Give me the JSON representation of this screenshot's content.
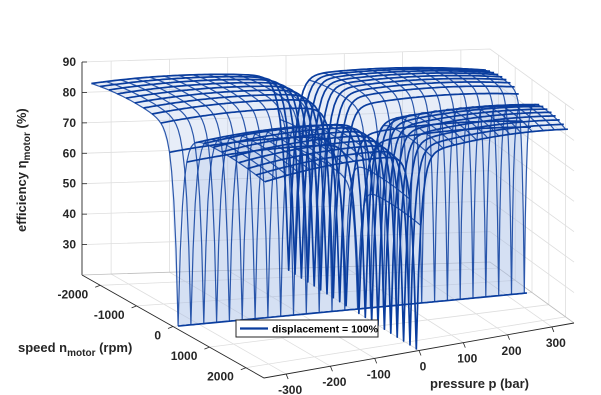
{
  "chart_data": {
    "type": "surface3d",
    "title": "",
    "xlabel": "pressure p (bar)",
    "ylabel": "speed n",
    "ylabel_sub": "motor",
    "ylabel_unit": " (rpm)",
    "zlabel": "efficiency η",
    "zlabel_sub": "motor",
    "zlabel_unit": " (%)",
    "x_ticks": [
      -300,
      -200,
      -100,
      0,
      100,
      200,
      300
    ],
    "y_ticks": [
      -2000,
      -1000,
      0,
      1000,
      2000
    ],
    "z_ticks": [
      30,
      40,
      50,
      60,
      70,
      80,
      90
    ],
    "xlim": [
      -350,
      350
    ],
    "ylim": [
      -2500,
      2500
    ],
    "zlim": [
      20,
      90
    ],
    "grid": true,
    "legend": {
      "position": "bottom-center",
      "entries": [
        "displacement = 100%"
      ]
    },
    "series": [
      {
        "name": "displacement = 100%",
        "color": "#0a3d9e",
        "fill": "#a9c0e6",
        "regions": [
          {
            "pressure_sign": "+",
            "speed_sign": "-",
            "peak_efficiency": 87
          },
          {
            "pressure_sign": "-",
            "speed_sign": "-",
            "peak_efficiency": 87
          },
          {
            "pressure_sign": "-",
            "speed_sign": "+",
            "peak_efficiency": 87
          },
          {
            "pressure_sign": "+",
            "speed_sign": "+",
            "peak_efficiency": 87
          }
        ]
      }
    ]
  }
}
